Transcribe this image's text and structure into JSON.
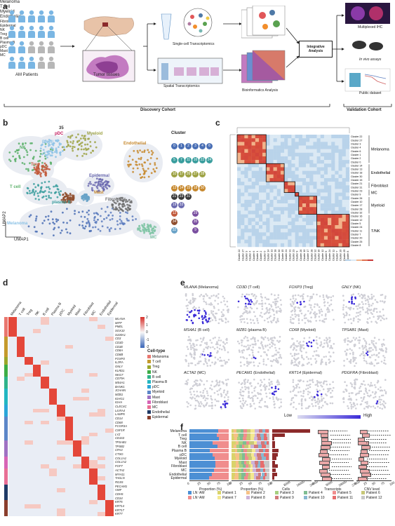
{
  "panels": {
    "a": "a",
    "b": "b",
    "c": "c",
    "d": "d",
    "e": "e",
    "f": "f"
  },
  "panel_a": {
    "am_patients": "AM Patients",
    "tumor_tissues": "Tumor tissues",
    "single_cell": "Single-cell Transcriptomics",
    "spatial": "Spatial Transcriptomics",
    "bioinformatics": "Bioinformatics Analysis",
    "integrative": "Integrative Analysis",
    "multiplexed_ihc": "Multiplexed IHC",
    "in_vivo": "In vivo assays",
    "public_dataset": "Public dataset",
    "discovery_cohort": "Discovery Cohort",
    "validation_cohort": "Validation Cohort"
  },
  "panel_b": {
    "umap1": "UMAP1",
    "umap2": "UMAP2",
    "cluster_title": "Cluster",
    "map_labels": {
      "pdc": "pDC",
      "pdc_num": "35",
      "nk": "NK",
      "bcell": "B cell",
      "myeloid": "Myeloid",
      "endothelial": "Endothelial",
      "treg": "Treg",
      "epidermal": "Epidermal",
      "mast": "Mast",
      "tcell": "T cell",
      "plasmab": "plasma B",
      "fibroblast": "Fibroblast",
      "melanoma": "Melanoma",
      "mc": "MC"
    },
    "legend": [
      {
        "name": "Melanoma",
        "nums": [
          "0",
          "1",
          "2",
          "3",
          "4",
          "6"
        ],
        "color": "#4a6fb5"
      },
      {
        "name": "T cell",
        "nums": [
          "5",
          "7",
          "11",
          "16",
          "22",
          "24"
        ],
        "color": "#3a9e9e"
      },
      {
        "name": "Myeloid",
        "nums": [
          "10",
          "17",
          "26",
          "27",
          "28"
        ],
        "color": "#9ea345"
      },
      {
        "name": "Endothelial",
        "nums": [
          "13",
          "14",
          "15",
          "18",
          "30"
        ],
        "color": "#c7892e"
      },
      {
        "name": "Fibroblast",
        "nums": [
          "21",
          "23",
          "31"
        ],
        "color": "#3a3a3a",
        "extra": "Fibroblast"
      },
      {
        "name": "Epidermal",
        "nums": [
          "19",
          "33"
        ],
        "color": "#6c6bb0",
        "extra": "Epidermal",
        "extra2": "NK"
      },
      {
        "name": "Treg",
        "nums": [
          "12"
        ],
        "color": "#c25a3c",
        "extra": "Treg",
        "b": "29",
        "blabel": "B cell"
      },
      {
        "name": "Plasma B",
        "nums": [
          "34"
        ],
        "color": "#8f4e2e",
        "extra": "Plasma B",
        "b": "35",
        "blabel": "pDC"
      },
      {
        "name": "Mast",
        "nums": [
          "32"
        ],
        "color": "#6aa3c8",
        "extra": "Mast",
        "b": "9",
        "blabel": "MC"
      }
    ]
  },
  "panel_c": {
    "groups": [
      "Melanoma",
      "Endothelial",
      "Fibroblast",
      "MC",
      "Myeloid",
      "T/NK"
    ],
    "row_clusters": [
      "Cluster 22",
      "Cluster 27",
      "Cluster 3",
      "Cluster 4",
      "Cluster 6",
      "Cluster 1",
      "Cluster 2",
      "Cluster 0",
      "Cluster 14",
      "Cluster 13",
      "Cluster 18",
      "Cluster 30",
      "Cluster 15",
      "Cluster 21",
      "Cluster 31",
      "Cluster 23",
      "Cluster 9",
      "Cluster 26",
      "Cluster 10",
      "Cluster 17",
      "Cluster 28",
      "Cluster 32",
      "Cluster 16",
      "Cluster 12",
      "Cluster 5",
      "Cluster 24",
      "Cluster 11",
      "Cluster 7",
      "Cluster 20",
      "Cluster 25",
      "Cluster 8"
    ],
    "scale_ticks": [
      "0.4",
      "0.6",
      "0.8",
      "1.0"
    ]
  },
  "panel_d": {
    "columns": [
      "Melanoma",
      "T cell",
      "Treg",
      "NK",
      "B cell",
      "Plasma B",
      "pDC",
      "Myeloid",
      "Mast",
      "Fibroblast",
      "MC",
      "Endothelial",
      "Epidermal"
    ],
    "genes": [
      "MLANA",
      "MITF",
      "PMEL",
      "SOX10",
      "S100A1",
      "CD3",
      "CD3D",
      "CD3E",
      "CD8A",
      "CD8B",
      "FOXP3",
      "IL2RA",
      "GNLY",
      "KLRD1",
      "NKG7",
      "CD79A",
      "MS4A1",
      "BANK1",
      "JCHAIN",
      "MZB1",
      "IGHG1",
      "IGHA",
      "CLEC4C",
      "LILRA4",
      "LAMP5",
      "CD14",
      "CD68",
      "FCGR3A",
      "CSF1R",
      "LYZ",
      "CD163",
      "TPSAB1",
      "TPSB2",
      "CPA3",
      "CTSG",
      "COL1A1",
      "COL1A2",
      "FGF7",
      "ACTA2",
      "MYH11",
      "TAGLN",
      "RGS5",
      "PECAM1",
      "VWF",
      "CDH5",
      "CD34",
      "KRT5",
      "KRT14",
      "KRT17",
      "KRT7"
    ],
    "scale_ticks": [
      "2",
      "1",
      "0",
      "-1",
      "-2"
    ],
    "legend_title": "Cell-type",
    "legend": [
      {
        "label": "Melanoma",
        "color": "#e9776f"
      },
      {
        "label": "T cell",
        "color": "#c59a2c"
      },
      {
        "label": "Treg",
        "color": "#9aa72b"
      },
      {
        "label": "NK",
        "color": "#3dad45"
      },
      {
        "label": "B cell",
        "color": "#2fb38a"
      },
      {
        "label": "Plasma B",
        "color": "#22b6c1"
      },
      {
        "label": "pDC",
        "color": "#2aa6d8"
      },
      {
        "label": "Myeloid",
        "color": "#5c86c8"
      },
      {
        "label": "Mast",
        "color": "#9f71c3"
      },
      {
        "label": "Fibroblast",
        "color": "#d764b6"
      },
      {
        "label": "MC",
        "color": "#e86f95"
      },
      {
        "label": "Endothelial",
        "color": "#1f3a66"
      },
      {
        "label": "Epidermal",
        "color": "#8a3e2d"
      }
    ]
  },
  "panel_e": {
    "maps": [
      {
        "gene": "MLANA",
        "cell": "(Melanoma)"
      },
      {
        "gene": "CD3D",
        "cell": "(T cell)"
      },
      {
        "gene": "FOXP3",
        "cell": "(Treg)"
      },
      {
        "gene": "GNLY",
        "cell": "(NK)"
      },
      {
        "gene": "MS4A1",
        "cell": "(B cell)"
      },
      {
        "gene": "MZB1",
        "cell": "(plasma B)"
      },
      {
        "gene": "CD68",
        "cell": "(Myeloid)"
      },
      {
        "gene": "TPSAB1",
        "cell": "(Mast)"
      },
      {
        "gene": "ACTA2",
        "cell": "(MC)"
      },
      {
        "gene": "PECAM1",
        "cell": "(Endothelial)"
      },
      {
        "gene": "KRT14",
        "cell": "(Epidermal)"
      },
      {
        "gene": "PDGFRA",
        "cell": "(Fibroblast)"
      }
    ],
    "low": "Low",
    "high": "High"
  },
  "panel_f": {
    "rows": [
      "Melanoma",
      "T cell",
      "Treg",
      "NK",
      "B cell",
      "Plasma B",
      "pDC",
      "Myeloid",
      "Mast",
      "Fibroblast",
      "MC",
      "Endothelial",
      "Epidermal"
    ],
    "col_titles": [
      "Proportion (%)",
      "Proportion (%)",
      "Cells",
      "Transcripts",
      "CNV level"
    ],
    "ticks_prop": [
      "0",
      "25",
      "50",
      "75",
      "100"
    ],
    "ticks_cells": [
      "0",
      "8000",
      "16000",
      "24000"
    ],
    "ticks_trans": [
      "0",
      "9000",
      "18000",
      "27000"
    ],
    "ticks_cnv": [
      "0",
      "25",
      "50",
      "75",
      "100"
    ],
    "ln_legend": [
      {
        "label": "LN⁻AM",
        "color": "#4c8fd4"
      },
      {
        "label": "LN⁺AM",
        "color": "#f08d8d"
      }
    ],
    "patients": [
      {
        "label": "Patient 1",
        "color": "#d9d36a"
      },
      {
        "label": "Patient 2",
        "color": "#f6c187"
      },
      {
        "label": "Patient 3",
        "color": "#a6cf7f"
      },
      {
        "label": "Patient 4",
        "color": "#7fbd92"
      },
      {
        "label": "Patient 5",
        "color": "#f08d8d"
      },
      {
        "label": "Patient 6",
        "color": "#c7c777"
      },
      {
        "label": "Patient 7",
        "color": "#f4e890"
      },
      {
        "label": "Patient 8",
        "color": "#cdb3d8"
      },
      {
        "label": "Patient 9",
        "color": "#d07a7a"
      },
      {
        "label": "Patient 10",
        "color": "#88b7d0"
      },
      {
        "label": "Patient 11",
        "color": "#e66d6d"
      },
      {
        "label": "Patient 12",
        "color": "#c7c7c7"
      }
    ]
  }
}
